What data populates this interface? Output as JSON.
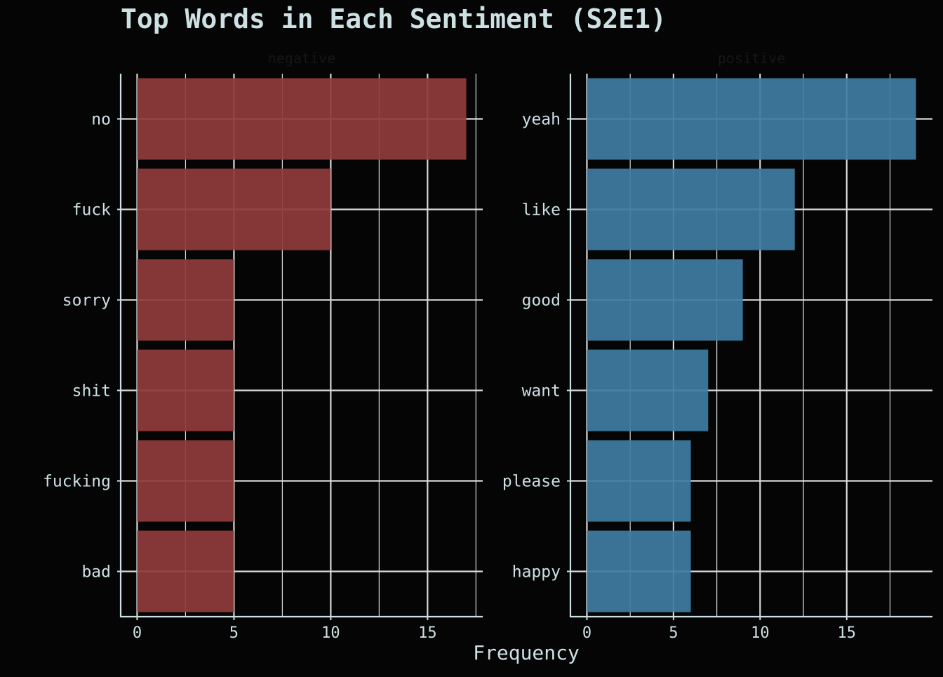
{
  "chart_data": {
    "type": "bar",
    "orientation": "horizontal",
    "title": "Top Words in Each Sentiment (S2E1)",
    "xlabel": "Frequency",
    "ylabel": "",
    "grid": true,
    "facets": [
      {
        "name": "negative",
        "color": "#8f3a3b",
        "categories": [
          "no",
          "fuck",
          "sorry",
          "shit",
          "fucking",
          "bad"
        ],
        "values": [
          17,
          10,
          5,
          5,
          5,
          5
        ],
        "xlim": [
          -0.85,
          17.85
        ],
        "ticks": [
          0,
          5,
          10,
          15
        ]
      },
      {
        "name": "positive",
        "color": "#3e7ca0",
        "categories": [
          "yeah",
          "like",
          "good",
          "want",
          "please",
          "happy"
        ],
        "values": [
          19,
          12,
          9,
          7,
          6,
          6
        ],
        "xlim": [
          -0.95,
          19.95
        ],
        "ticks": [
          0,
          5,
          10,
          15
        ]
      }
    ]
  },
  "colors": {
    "background": "#050505",
    "text": "#cde0e3",
    "grid": "#d9d9d9",
    "strip_text": "#161616"
  }
}
